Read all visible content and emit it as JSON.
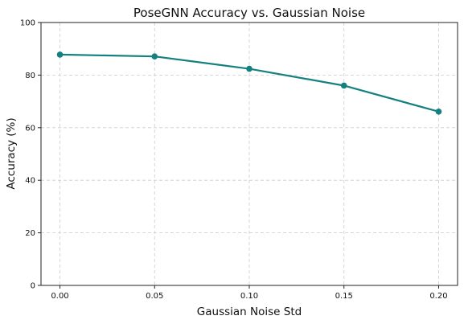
{
  "chart_data": {
    "type": "line",
    "title": "PoseGNN Accuracy vs. Gaussian Noise",
    "xlabel": "Gaussian Noise Std",
    "ylabel": "Accuracy (%)",
    "x": [
      0.0,
      0.05,
      0.1,
      0.15,
      0.2
    ],
    "x_tick_labels": [
      "0.00",
      "0.05",
      "0.10",
      "0.15",
      "0.20"
    ],
    "y_ticks": [
      0,
      20,
      40,
      60,
      80,
      100
    ],
    "y_tick_labels": [
      "0",
      "20",
      "40",
      "60",
      "80",
      "100"
    ],
    "xlim": [
      -0.01,
      0.21
    ],
    "ylim": [
      0,
      100
    ],
    "grid": true,
    "series": [
      {
        "values": [
          87.8,
          87.1,
          82.4,
          76.0,
          66.1
        ],
        "color": "#148080"
      }
    ]
  }
}
